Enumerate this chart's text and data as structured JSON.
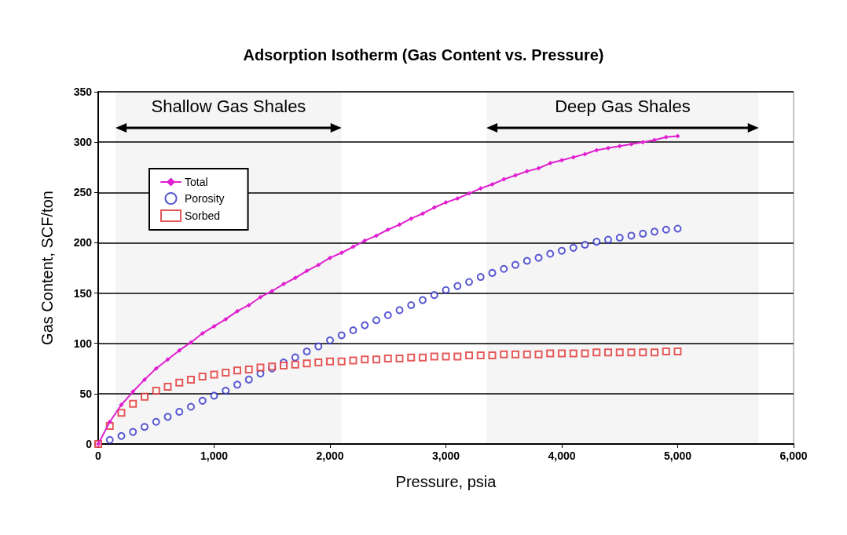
{
  "chart_data": {
    "type": "scatter",
    "title": "Adsorption Isotherm (Gas Content vs. Pressure)",
    "xlabel": "Pressure, psia",
    "ylabel": "Gas Content, SCF/ton",
    "x": [
      0,
      100,
      200,
      300,
      400,
      500,
      600,
      700,
      800,
      900,
      1000,
      1100,
      1200,
      1300,
      1400,
      1500,
      1600,
      1700,
      1800,
      1900,
      2000,
      2100,
      2200,
      2300,
      2400,
      2500,
      2600,
      2700,
      2800,
      2900,
      3000,
      3100,
      3200,
      3300,
      3400,
      3500,
      3600,
      3700,
      3800,
      3900,
      4000,
      4100,
      4200,
      4300,
      4400,
      4500,
      4600,
      4700,
      4800,
      4900,
      5000
    ],
    "series": [
      {
        "name": "Total",
        "type": "line",
        "marker": "diamond",
        "color": "#e020d0",
        "values": [
          0,
          22,
          39,
          52,
          64,
          75,
          84,
          93,
          101,
          110,
          117,
          124,
          132,
          138,
          146,
          152,
          159,
          165,
          172,
          178,
          185,
          190,
          196,
          202,
          207,
          213,
          218,
          224,
          229,
          235,
          240,
          244,
          249,
          254,
          258,
          263,
          267,
          271,
          274,
          279,
          282,
          285,
          288,
          292,
          294,
          296,
          298,
          300,
          302,
          305,
          306
        ]
      },
      {
        "name": "Porosity",
        "type": "scatter",
        "marker": "circle",
        "color": "#3030c8",
        "values": [
          0,
          4,
          8,
          12,
          17,
          22,
          27,
          32,
          37,
          43,
          48,
          53,
          59,
          64,
          70,
          75,
          81,
          86,
          92,
          97,
          103,
          108,
          113,
          118,
          123,
          128,
          133,
          138,
          143,
          148,
          153,
          157,
          161,
          166,
          170,
          174,
          178,
          182,
          185,
          189,
          192,
          195,
          198,
          201,
          203,
          205,
          207,
          209,
          211,
          213,
          214
        ]
      },
      {
        "name": "Sorbed",
        "marker": "square",
        "color": "#e03030",
        "values": [
          0,
          18,
          31,
          40,
          47,
          53,
          57,
          61,
          64,
          67,
          69,
          71,
          73,
          74,
          76,
          77,
          78,
          79,
          80,
          81,
          82,
          82,
          83,
          84,
          84,
          85,
          85,
          86,
          86,
          87,
          87,
          87,
          88,
          88,
          88,
          89,
          89,
          89,
          89,
          90,
          90,
          90,
          90,
          91,
          91,
          91,
          91,
          91,
          91,
          92,
          92
        ]
      }
    ],
    "xlim": [
      0,
      6000
    ],
    "xticks": [
      0,
      {
        "value": 1000,
        "label": "1,000"
      },
      {
        "value": 2000,
        "label": "2,000"
      },
      {
        "value": 3000,
        "label": "3,000"
      },
      {
        "value": 4000,
        "label": "4,000"
      },
      {
        "value": 5000,
        "label": "5,000"
      },
      {
        "value": 6000,
        "label": "6,000"
      }
    ],
    "ylim": [
      0,
      350
    ],
    "yticks": [
      0,
      50,
      100,
      150,
      200,
      250,
      300,
      350
    ],
    "bands": [
      {
        "axis": "x",
        "from": 150,
        "to": 2100,
        "label": "Shallow Gas Shales"
      },
      {
        "axis": "x",
        "from": 3350,
        "to": 5700,
        "label": "Deep Gas Shales"
      }
    ],
    "grid": "y",
    "legend": "top left"
  }
}
